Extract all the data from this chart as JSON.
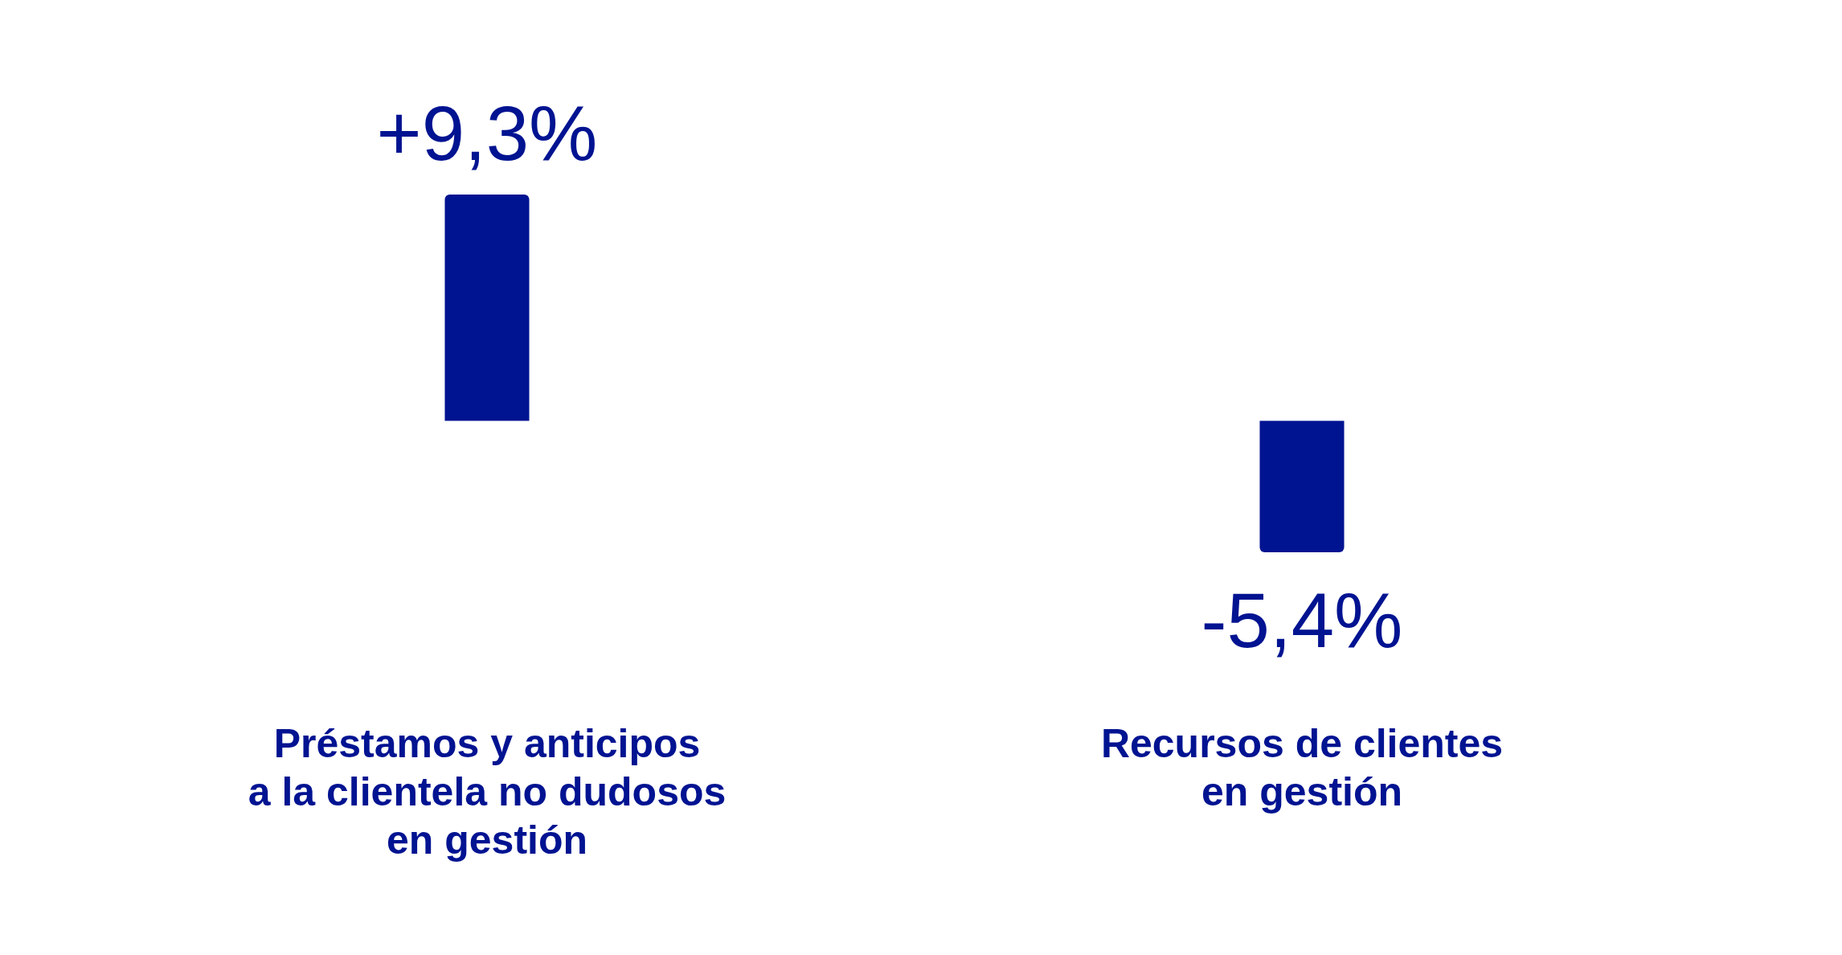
{
  "chart_data": {
    "type": "bar",
    "categories": [
      "Préstamos y anticipos\na la clientela no dudosos\nen gestión",
      "Recursos de clientes\nen gestión"
    ],
    "values": [
      9.3,
      -5.4
    ],
    "color": "#001391",
    "value_labels": [
      "+9,3%",
      "-5,4%"
    ],
    "tick_labels": "x"
  }
}
